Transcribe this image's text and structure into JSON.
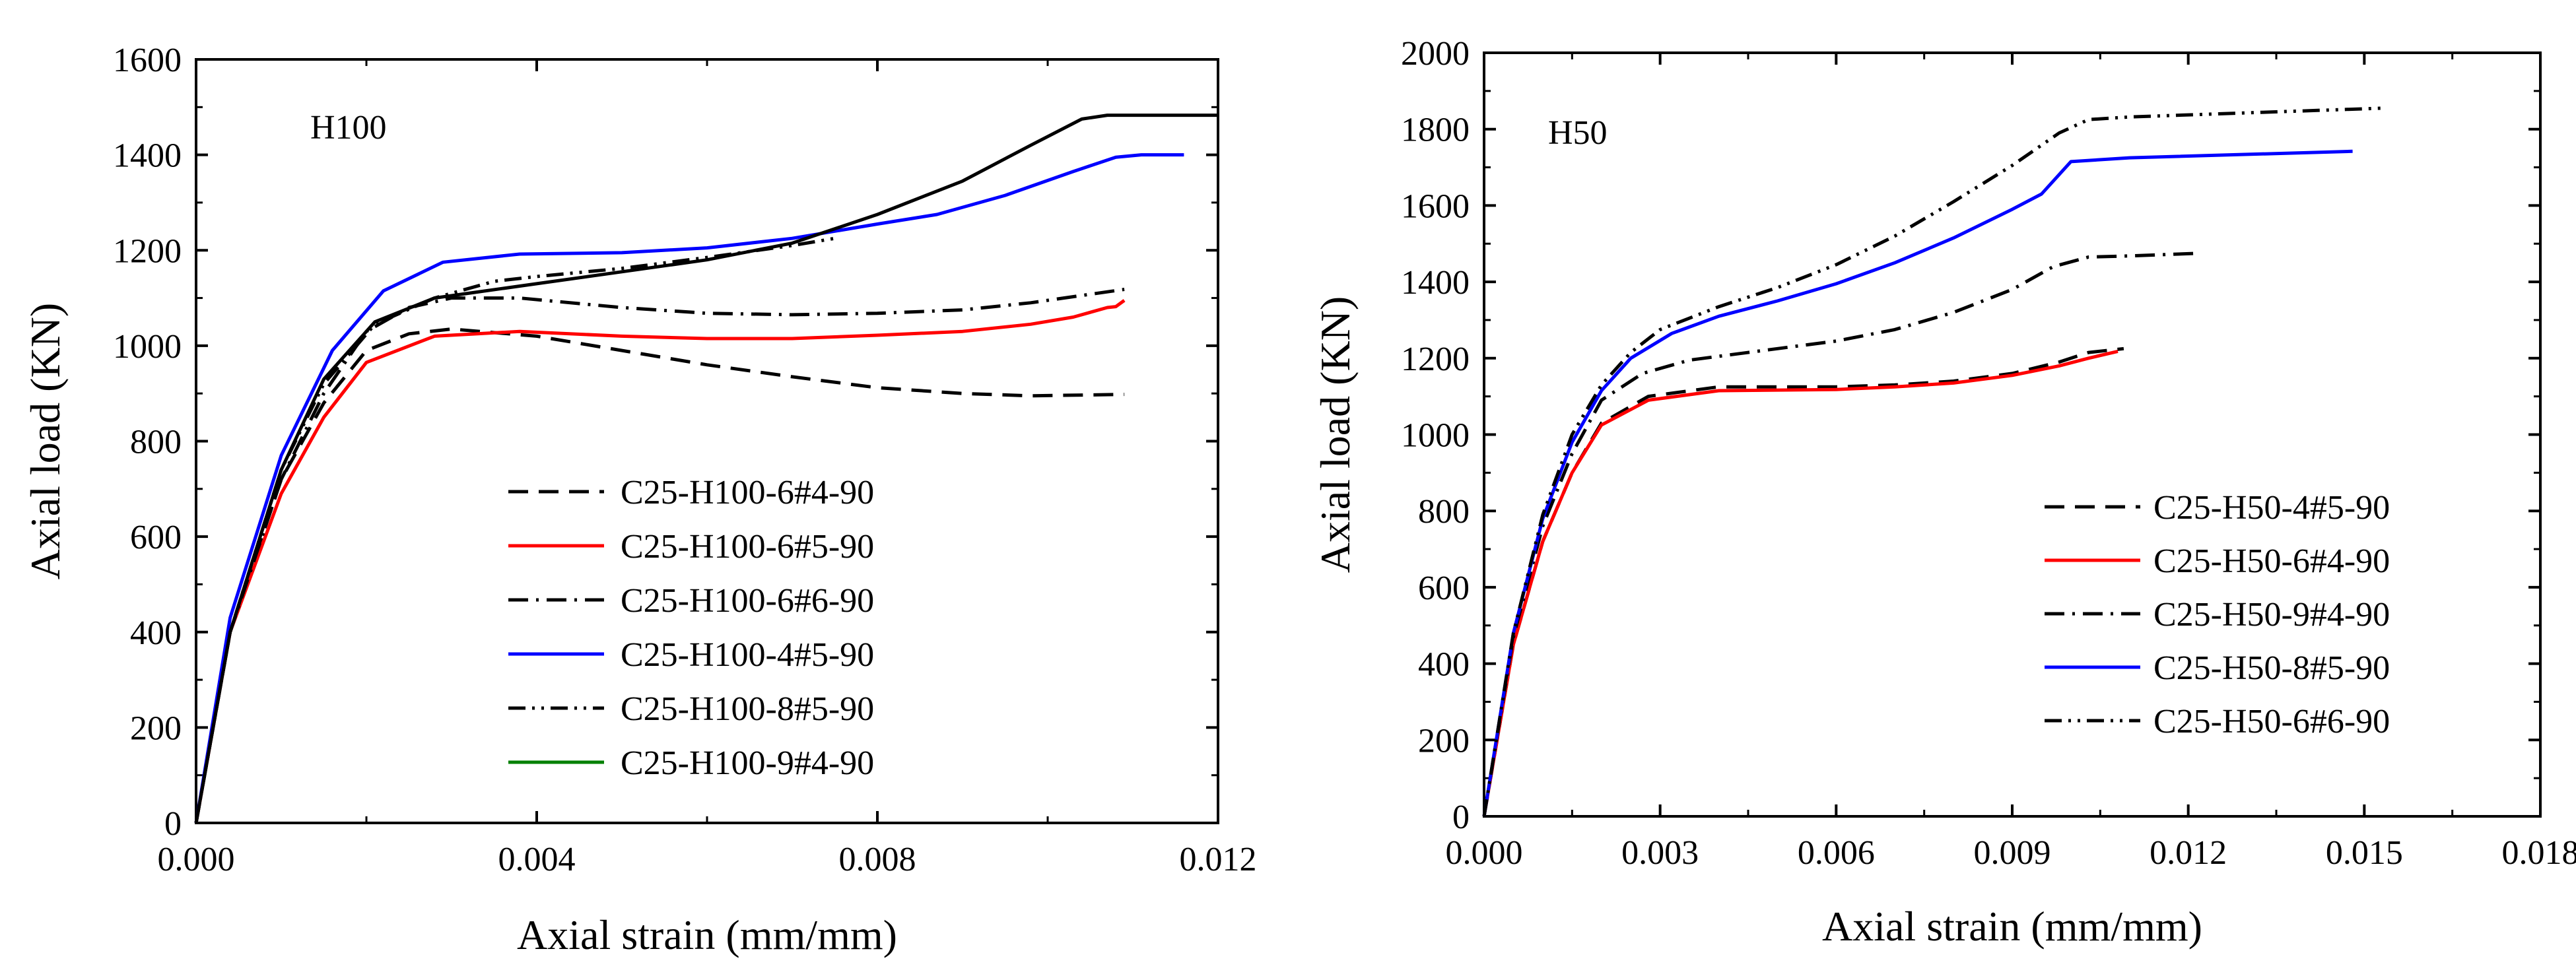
{
  "chart_data": [
    {
      "type": "line",
      "panel_label": "H100",
      "xlabel": "Axial strain (mm/mm)",
      "ylabel": "Axial load (KN)",
      "xlim": [
        0,
        0.012
      ],
      "ylim": [
        0,
        1600
      ],
      "xticks": [
        "0.000",
        "0.004",
        "0.008",
        "0.012"
      ],
      "xtick_values": [
        0,
        0.004,
        0.008,
        0.012
      ],
      "yticks": [
        "0",
        "200",
        "400",
        "600",
        "800",
        "1000",
        "1200",
        "1400",
        "1600"
      ],
      "ytick_values": [
        0,
        200,
        400,
        600,
        800,
        1000,
        1200,
        1400,
        1600
      ],
      "grid": false,
      "legend_position": "center-right",
      "series": [
        {
          "name": "C25-H100-6#4-90",
          "color": "#000000",
          "dash": "dashed",
          "points": [
            [
              0,
              0
            ],
            [
              0.0004,
              400
            ],
            [
              0.001,
              720
            ],
            [
              0.0015,
              880
            ],
            [
              0.002,
              990
            ],
            [
              0.0025,
              1025
            ],
            [
              0.003,
              1035
            ],
            [
              0.004,
              1020
            ],
            [
              0.005,
              990
            ],
            [
              0.006,
              960
            ],
            [
              0.007,
              935
            ],
            [
              0.008,
              912
            ],
            [
              0.009,
              900
            ],
            [
              0.0098,
              895
            ],
            [
              0.0109,
              898
            ]
          ]
        },
        {
          "name": "C25-H100-6#5-90",
          "color": "#ff0000",
          "dash": "solid",
          "points": [
            [
              0,
              0
            ],
            [
              0.0004,
              400
            ],
            [
              0.001,
              690
            ],
            [
              0.0015,
              850
            ],
            [
              0.002,
              965
            ],
            [
              0.0028,
              1020
            ],
            [
              0.0038,
              1030
            ],
            [
              0.005,
              1020
            ],
            [
              0.006,
              1015
            ],
            [
              0.007,
              1015
            ],
            [
              0.008,
              1022
            ],
            [
              0.009,
              1030
            ],
            [
              0.0098,
              1045
            ],
            [
              0.0103,
              1060
            ],
            [
              0.0107,
              1080
            ],
            [
              0.0108,
              1082
            ],
            [
              0.0109,
              1095
            ]
          ]
        },
        {
          "name": "C25-H100-6#6-90",
          "color": "#000000",
          "dash": "dashdot",
          "points": [
            [
              0,
              0
            ],
            [
              0.0004,
              400
            ],
            [
              0.001,
              720
            ],
            [
              0.0015,
              900
            ],
            [
              0.002,
              1030
            ],
            [
              0.0025,
              1080
            ],
            [
              0.003,
              1100
            ],
            [
              0.0038,
              1100
            ],
            [
              0.005,
              1080
            ],
            [
              0.006,
              1068
            ],
            [
              0.007,
              1065
            ],
            [
              0.008,
              1068
            ],
            [
              0.009,
              1075
            ],
            [
              0.0098,
              1090
            ],
            [
              0.0109,
              1118
            ]
          ]
        },
        {
          "name": "C25-H100-4#5-90",
          "color": "#0000ff",
          "dash": "solid",
          "points": [
            [
              0,
              0
            ],
            [
              0.0004,
              430
            ],
            [
              0.001,
              770
            ],
            [
              0.0016,
              990
            ],
            [
              0.0022,
              1115
            ],
            [
              0.0029,
              1175
            ],
            [
              0.0038,
              1192
            ],
            [
              0.005,
              1195
            ],
            [
              0.006,
              1205
            ],
            [
              0.007,
              1225
            ],
            [
              0.008,
              1255
            ],
            [
              0.0087,
              1275
            ],
            [
              0.0095,
              1315
            ],
            [
              0.0103,
              1365
            ],
            [
              0.0108,
              1395
            ],
            [
              0.0111,
              1400
            ],
            [
              0.0116,
              1400
            ]
          ]
        },
        {
          "name": "C25-H100-8#5-90",
          "color": "#000000",
          "dash": "dashdotdot",
          "points": [
            [
              0,
              0
            ],
            [
              0.0004,
              400
            ],
            [
              0.001,
              740
            ],
            [
              0.0015,
              920
            ],
            [
              0.0021,
              1045
            ],
            [
              0.0028,
              1100
            ],
            [
              0.0035,
              1135
            ],
            [
              0.004,
              1145
            ],
            [
              0.005,
              1162
            ],
            [
              0.006,
              1185
            ],
            [
              0.007,
              1210
            ],
            [
              0.0075,
              1225
            ]
          ]
        },
        {
          "name": "C25-H100-9#4-90",
          "color": "#000000",
          "dash": "solid",
          "legend_color": "#008000",
          "points": [
            [
              0,
              0
            ],
            [
              0.0004,
              400
            ],
            [
              0.001,
              740
            ],
            [
              0.0015,
              930
            ],
            [
              0.0021,
              1050
            ],
            [
              0.0028,
              1100
            ],
            [
              0.004,
              1130
            ],
            [
              0.005,
              1155
            ],
            [
              0.006,
              1180
            ],
            [
              0.007,
              1215
            ],
            [
              0.008,
              1275
            ],
            [
              0.009,
              1345
            ],
            [
              0.0098,
              1420
            ],
            [
              0.0104,
              1475
            ],
            [
              0.0107,
              1483
            ],
            [
              0.012,
              1483
            ]
          ]
        }
      ]
    },
    {
      "type": "line",
      "panel_label": "H50",
      "xlabel": "Axial strain (mm/mm)",
      "ylabel": "Axial load (KN)",
      "xlim": [
        0,
        0.018
      ],
      "ylim": [
        0,
        2000
      ],
      "xticks": [
        "0.000",
        "0.003",
        "0.006",
        "0.009",
        "0.012",
        "0.015",
        "0.018"
      ],
      "xtick_values": [
        0,
        0.003,
        0.006,
        0.009,
        0.012,
        0.015,
        0.018
      ],
      "yticks": [
        "0",
        "200",
        "400",
        "600",
        "800",
        "1000",
        "1200",
        "1400",
        "1600",
        "1800",
        "2000"
      ],
      "ytick_values": [
        0,
        200,
        400,
        600,
        800,
        1000,
        1200,
        1400,
        1600,
        1800,
        2000
      ],
      "grid": false,
      "legend_position": "center-right",
      "series": [
        {
          "name": "C25-H50-4#5-90",
          "color": "#000000",
          "dash": "dashed",
          "points": [
            [
              0,
              0
            ],
            [
              0.0005,
              450
            ],
            [
              0.001,
              720
            ],
            [
              0.0015,
              900
            ],
            [
              0.002,
              1030
            ],
            [
              0.0028,
              1100
            ],
            [
              0.004,
              1125
            ],
            [
              0.006,
              1125
            ],
            [
              0.007,
              1130
            ],
            [
              0.008,
              1140
            ],
            [
              0.009,
              1160
            ],
            [
              0.0098,
              1190
            ],
            [
              0.0103,
              1215
            ],
            [
              0.0109,
              1225
            ]
          ]
        },
        {
          "name": "C25-H50-6#4-90",
          "color": "#ff0000",
          "dash": "solid",
          "points": [
            [
              0,
              0
            ],
            [
              0.0005,
              450
            ],
            [
              0.001,
              720
            ],
            [
              0.0015,
              900
            ],
            [
              0.002,
              1025
            ],
            [
              0.0028,
              1090
            ],
            [
              0.004,
              1115
            ],
            [
              0.006,
              1118
            ],
            [
              0.007,
              1125
            ],
            [
              0.008,
              1135
            ],
            [
              0.009,
              1155
            ],
            [
              0.0098,
              1180
            ],
            [
              0.0103,
              1200
            ],
            [
              0.0108,
              1218
            ]
          ]
        },
        {
          "name": "C25-H50-9#4-90",
          "color": "#000000",
          "dash": "dashdot",
          "points": [
            [
              0,
              0
            ],
            [
              0.0005,
              470
            ],
            [
              0.001,
              760
            ],
            [
              0.0015,
              950
            ],
            [
              0.002,
              1090
            ],
            [
              0.0027,
              1160
            ],
            [
              0.0035,
              1195
            ],
            [
              0.005,
              1225
            ],
            [
              0.006,
              1245
            ],
            [
              0.007,
              1275
            ],
            [
              0.008,
              1320
            ],
            [
              0.009,
              1380
            ],
            [
              0.0097,
              1440
            ],
            [
              0.0103,
              1465
            ],
            [
              0.011,
              1468
            ],
            [
              0.0122,
              1475
            ]
          ]
        },
        {
          "name": "C25-H50-8#5-90",
          "color": "#0000ff",
          "dash": "solid",
          "points": [
            [
              0,
              0
            ],
            [
              0.0005,
              480
            ],
            [
              0.001,
              780
            ],
            [
              0.0015,
              980
            ],
            [
              0.002,
              1115
            ],
            [
              0.0025,
              1200
            ],
            [
              0.0032,
              1265
            ],
            [
              0.004,
              1310
            ],
            [
              0.005,
              1350
            ],
            [
              0.006,
              1395
            ],
            [
              0.007,
              1450
            ],
            [
              0.008,
              1515
            ],
            [
              0.009,
              1590
            ],
            [
              0.0095,
              1630
            ],
            [
              0.01,
              1715
            ],
            [
              0.011,
              1725
            ],
            [
              0.0148,
              1742
            ]
          ]
        },
        {
          "name": "C25-H50-6#6-90",
          "color": "#000000",
          "dash": "dashdotdot",
          "points": [
            [
              0,
              0
            ],
            [
              0.0005,
              480
            ],
            [
              0.001,
              790
            ],
            [
              0.0015,
              1000
            ],
            [
              0.002,
              1130
            ],
            [
              0.0025,
              1215
            ],
            [
              0.003,
              1275
            ],
            [
              0.004,
              1335
            ],
            [
              0.005,
              1385
            ],
            [
              0.006,
              1445
            ],
            [
              0.007,
              1520
            ],
            [
              0.008,
              1610
            ],
            [
              0.009,
              1705
            ],
            [
              0.0098,
              1790
            ],
            [
              0.0103,
              1825
            ],
            [
              0.011,
              1832
            ],
            [
              0.0153,
              1855
            ]
          ]
        }
      ]
    }
  ]
}
